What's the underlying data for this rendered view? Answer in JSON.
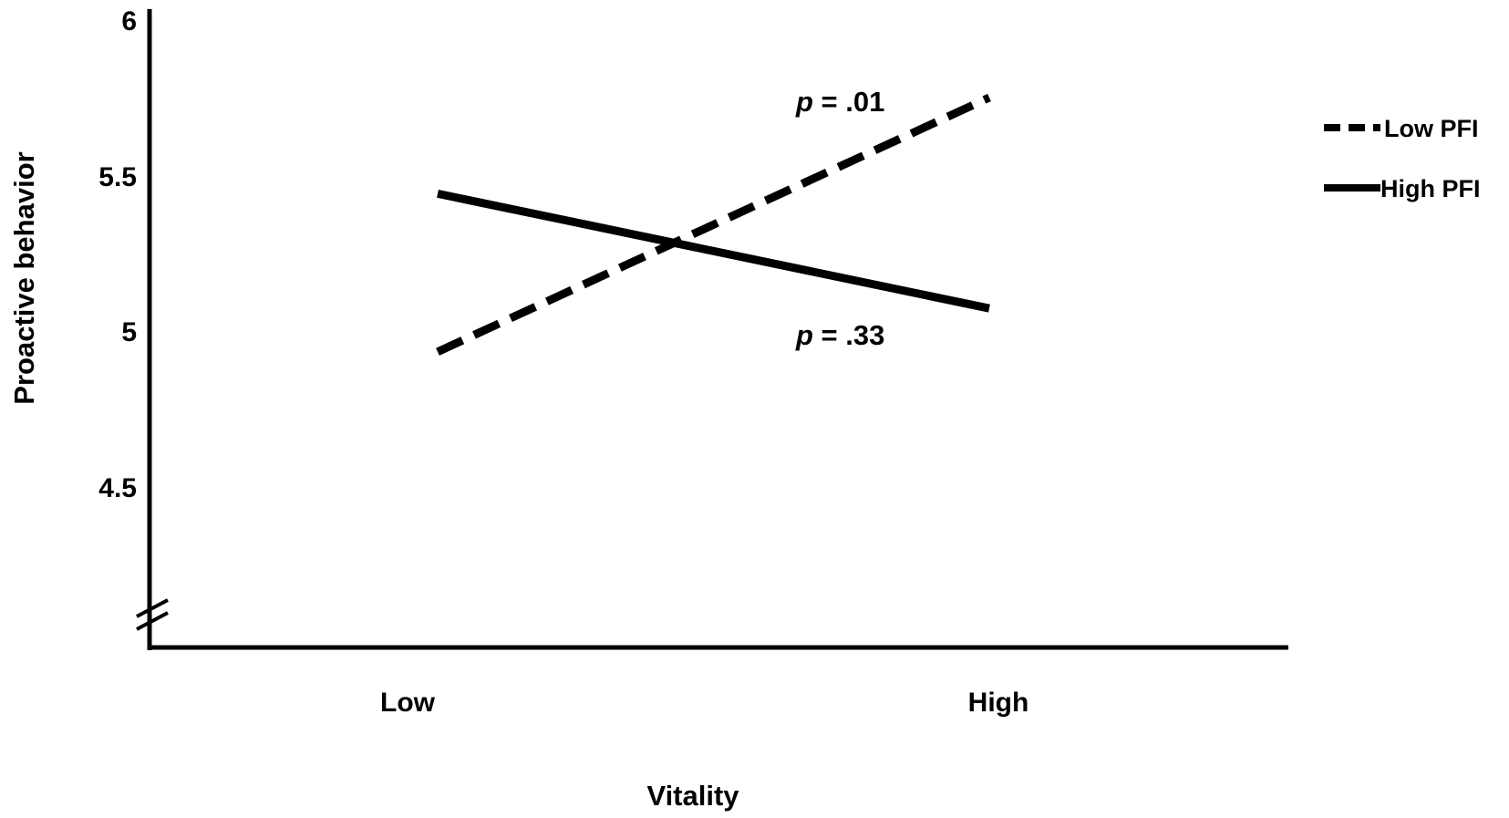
{
  "chart_data": {
    "type": "line",
    "title": "",
    "xlabel": "Vitality",
    "ylabel": "Proactive behavior",
    "categories": [
      "Low",
      "High"
    ],
    "yticks": [
      "6",
      "5.5",
      "5",
      "4.5"
    ],
    "ylim": [
      4,
      6
    ],
    "y_axis_break": true,
    "grid": false,
    "legend_position": "right",
    "series": [
      {
        "name": "Low PFI",
        "style": "dashed",
        "color": "#000000",
        "values": [
          4.93,
          5.75
        ]
      },
      {
        "name": "High PFI",
        "style": "solid",
        "color": "#000000",
        "values": [
          5.44,
          5.07
        ]
      }
    ],
    "annotations": [
      {
        "series": "Low PFI",
        "p_symbol": "p",
        "text": " = .01"
      },
      {
        "series": "High PFI",
        "p_symbol": "p",
        "text": " = .33"
      }
    ]
  }
}
